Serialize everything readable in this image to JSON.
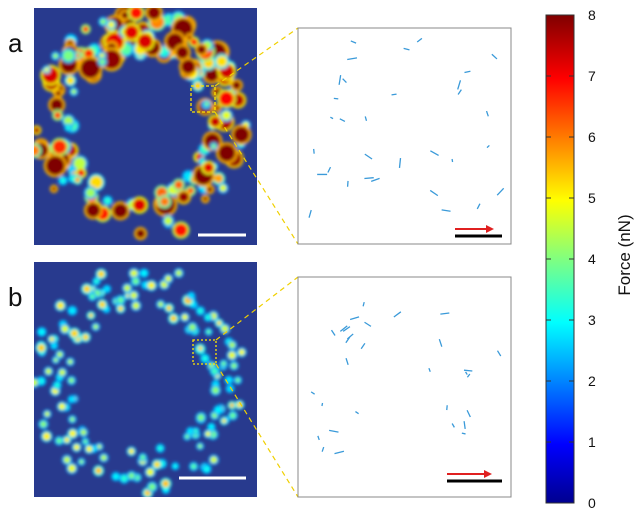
{
  "panels": [
    {
      "label": "a"
    },
    {
      "label": "b"
    }
  ],
  "colorbar": {
    "label": "Force (nN)",
    "lim": [
      0,
      8
    ],
    "ticks": [
      0,
      1,
      2,
      3,
      4,
      5,
      6,
      7,
      8
    ]
  }
}
